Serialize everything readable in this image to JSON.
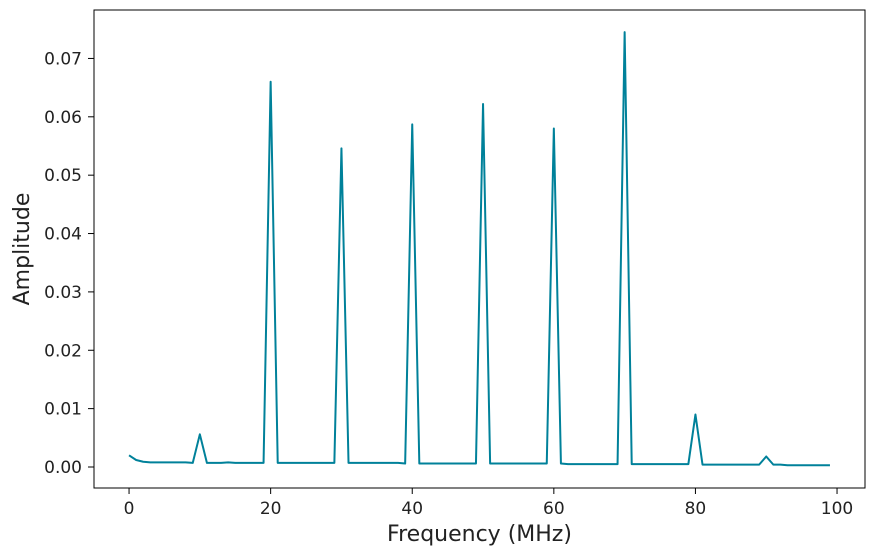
{
  "chart_data": {
    "type": "line",
    "title": "",
    "xlabel": "Frequency (MHz)",
    "ylabel": "Amplitude",
    "xlim": [
      -4.95,
      103.95
    ],
    "ylim": [
      -0.0036,
      0.0783
    ],
    "xticks": [
      0,
      20,
      40,
      60,
      80,
      100
    ],
    "xtick_labels": [
      "0",
      "20",
      "40",
      "60",
      "80",
      "100"
    ],
    "yticks": [
      0.0,
      0.01,
      0.02,
      0.03,
      0.04,
      0.05,
      0.06,
      0.07
    ],
    "ytick_labels": [
      "0.00",
      "0.01",
      "0.02",
      "0.03",
      "0.04",
      "0.05",
      "0.06",
      "0.07"
    ],
    "grid": false,
    "legend": "none",
    "line_color": "#00819a",
    "series": [
      {
        "x": [
          0,
          1,
          2,
          3,
          4,
          5,
          6,
          7,
          8,
          9,
          10,
          11,
          12,
          13,
          14,
          15,
          16,
          17,
          18,
          19,
          20,
          21,
          22,
          23,
          24,
          25,
          26,
          27,
          28,
          29,
          30,
          31,
          32,
          33,
          34,
          35,
          36,
          37,
          38,
          39,
          40,
          41,
          42,
          43,
          44,
          45,
          46,
          47,
          48,
          49,
          50,
          51,
          52,
          53,
          54,
          55,
          56,
          57,
          58,
          59,
          60,
          61,
          62,
          63,
          64,
          65,
          66,
          67,
          68,
          69,
          70,
          71,
          72,
          73,
          74,
          75,
          76,
          77,
          78,
          79,
          80,
          81,
          82,
          83,
          84,
          85,
          86,
          87,
          88,
          89,
          90,
          91,
          92,
          93,
          94,
          95,
          96,
          97,
          98,
          99
        ],
        "values": [
          0.002,
          0.0012,
          0.0009,
          0.0008,
          0.0008,
          0.0008,
          0.0008,
          0.0008,
          0.0008,
          0.0007,
          0.0056,
          0.0007,
          0.0007,
          0.0007,
          0.0008,
          0.0007,
          0.0007,
          0.0007,
          0.0007,
          0.0007,
          0.066,
          0.0007,
          0.0007,
          0.0007,
          0.0007,
          0.0007,
          0.0007,
          0.0007,
          0.0007,
          0.0007,
          0.0546,
          0.0007,
          0.0007,
          0.0007,
          0.0007,
          0.0007,
          0.0007,
          0.0007,
          0.0007,
          0.0006,
          0.0587,
          0.0006,
          0.0006,
          0.0006,
          0.0006,
          0.0006,
          0.0006,
          0.0006,
          0.0006,
          0.0006,
          0.0622,
          0.0006,
          0.0006,
          0.0006,
          0.0006,
          0.0006,
          0.0006,
          0.0006,
          0.0006,
          0.0006,
          0.058,
          0.0006,
          0.0005,
          0.0005,
          0.0005,
          0.0005,
          0.0005,
          0.0005,
          0.0005,
          0.0005,
          0.0745,
          0.0005,
          0.0005,
          0.0005,
          0.0005,
          0.0005,
          0.0005,
          0.0005,
          0.0005,
          0.0005,
          0.009,
          0.0004,
          0.0004,
          0.0004,
          0.0004,
          0.0004,
          0.0004,
          0.0004,
          0.0004,
          0.0004,
          0.0018,
          0.0004,
          0.0004,
          0.0003,
          0.0003,
          0.0003,
          0.0003,
          0.0003,
          0.0003,
          0.0003
        ]
      }
    ]
  }
}
